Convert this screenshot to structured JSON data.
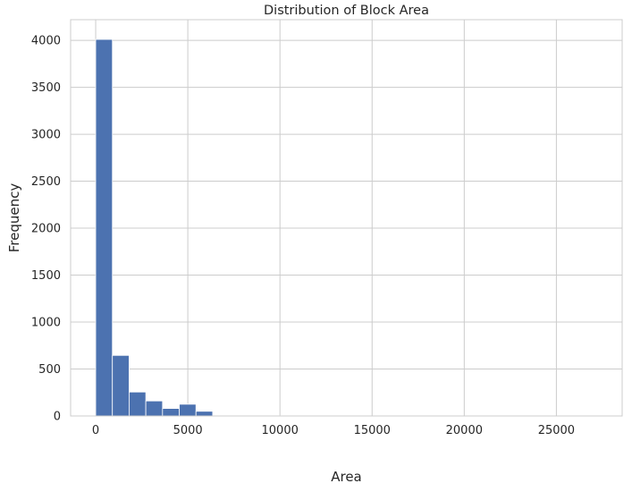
{
  "chart_data": {
    "type": "bar",
    "subtype": "histogram",
    "title": "Distribution of Block Area",
    "xlabel": "Area",
    "ylabel": "Frequency",
    "xlim": [
      -1360,
      28570
    ],
    "ylim": [
      0,
      4220
    ],
    "xticks": [
      0,
      5000,
      10000,
      15000,
      20000,
      25000
    ],
    "xtick_labels": [
      "0",
      "5000",
      "10000",
      "15000",
      "20000",
      "25000"
    ],
    "yticks": [
      0,
      500,
      1000,
      1500,
      2000,
      2500,
      3000,
      3500,
      4000
    ],
    "ytick_labels": [
      "0",
      "500",
      "1000",
      "1500",
      "2000",
      "2500",
      "3000",
      "3500",
      "4000"
    ],
    "bin_edges": [
      0,
      907,
      1814,
      2721,
      3628,
      4535,
      5442,
      6349,
      7256,
      8163,
      9070,
      9977,
      10884,
      11791,
      12698,
      13605,
      14512,
      15419,
      16326,
      17233,
      18140,
      19047,
      19954,
      20861,
      21768,
      22675,
      23582,
      24489,
      25396,
      26303,
      27210
    ],
    "values": [
      4010,
      645,
      255,
      160,
      80,
      125,
      50,
      8,
      4,
      3,
      2,
      2,
      1,
      1,
      1,
      1,
      1,
      0,
      1,
      0,
      0,
      1,
      0,
      0,
      0,
      0,
      0,
      0,
      0,
      1
    ],
    "bar_color": "#4c72b0",
    "grid": true,
    "legend": "none"
  }
}
